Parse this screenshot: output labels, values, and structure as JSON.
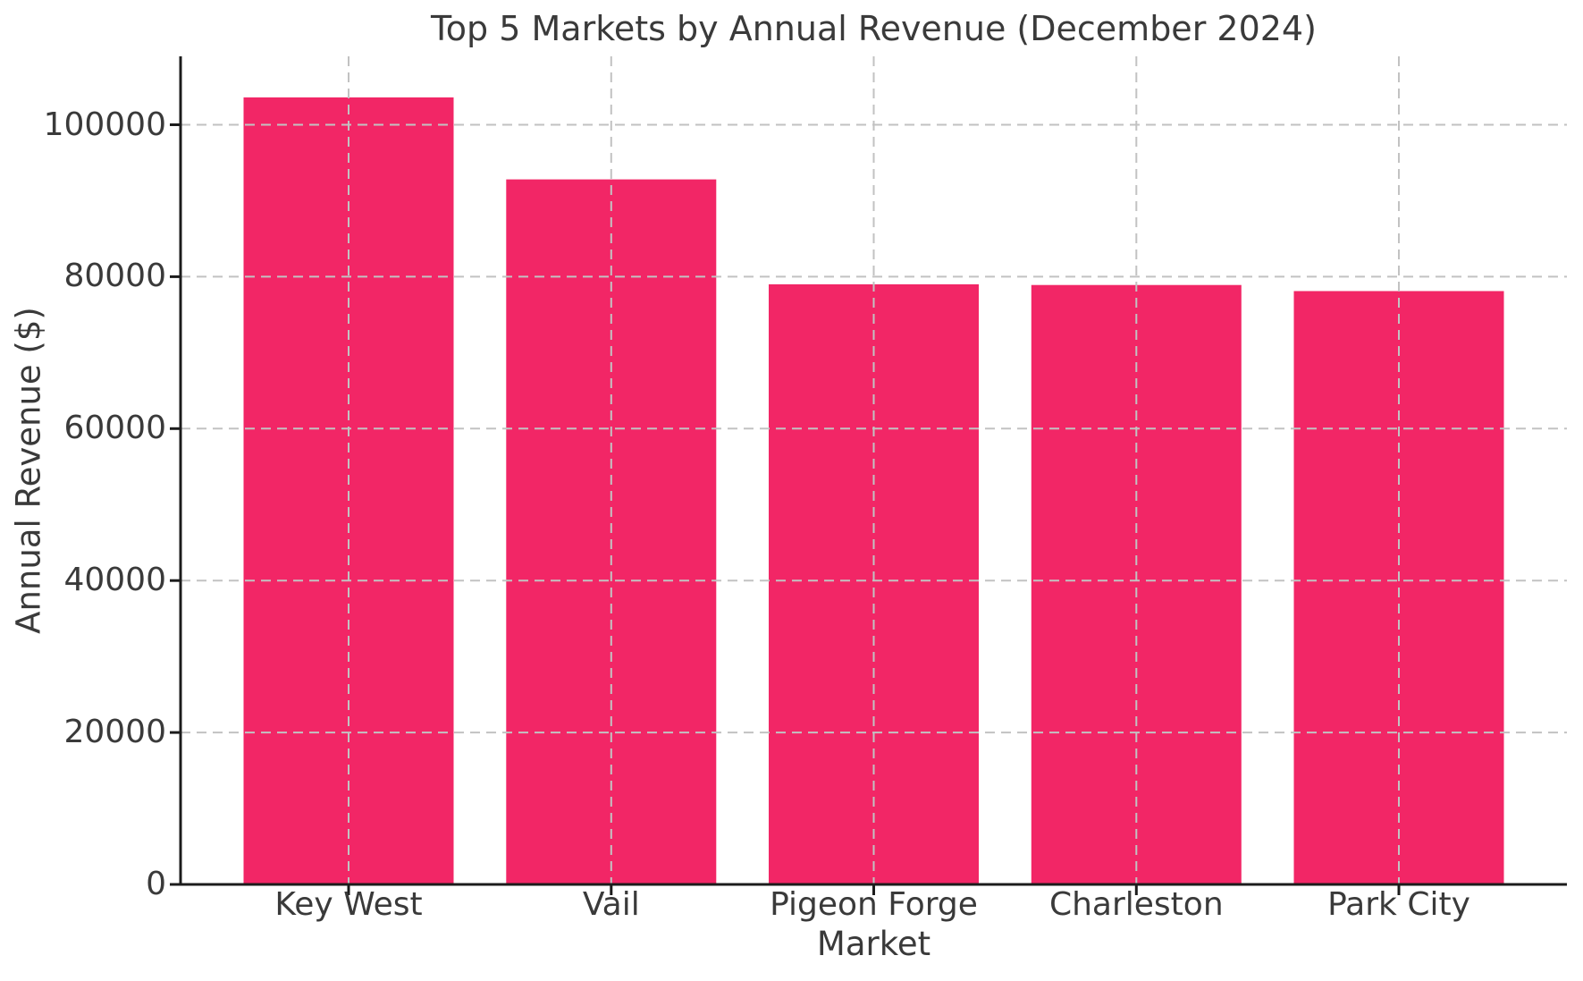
{
  "chart_data": {
    "type": "bar",
    "title": "Top 5 Markets by Annual Revenue (December 2024)",
    "xlabel": "Market",
    "ylabel": "Annual Revenue ($)",
    "categories": [
      "Key West",
      "Vail",
      "Pigeon Forge",
      "Charleston",
      "Park City"
    ],
    "values": [
      103600,
      92800,
      79000,
      78900,
      78100
    ],
    "yticks": [
      0,
      20000,
      40000,
      60000,
      80000,
      100000
    ],
    "ylim": [
      0,
      109000
    ],
    "xlim": [
      -0.64,
      4.64
    ],
    "bar_width_fraction": 0.8,
    "grid": "dashed-both-axes-above-bars",
    "legend": "none",
    "colors": {
      "bar": "#f22666",
      "grid": "#c2c2c2",
      "text": "#3a3a3a",
      "spine": "#1c1c1c",
      "background": "#ffffff"
    }
  }
}
